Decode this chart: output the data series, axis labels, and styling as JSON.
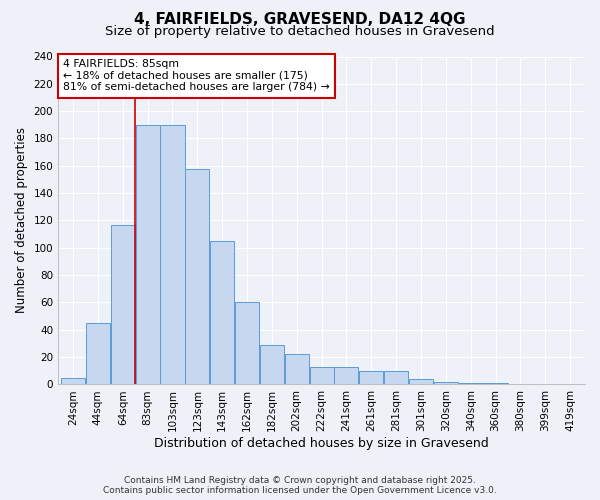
{
  "title": "4, FAIRFIELDS, GRAVESEND, DA12 4QG",
  "subtitle": "Size of property relative to detached houses in Gravesend",
  "xlabel": "Distribution of detached houses by size in Gravesend",
  "ylabel": "Number of detached properties",
  "bin_labels": [
    "24sqm",
    "44sqm",
    "64sqm",
    "83sqm",
    "103sqm",
    "123sqm",
    "143sqm",
    "162sqm",
    "182sqm",
    "202sqm",
    "222sqm",
    "241sqm",
    "261sqm",
    "281sqm",
    "301sqm",
    "320sqm",
    "340sqm",
    "360sqm",
    "380sqm",
    "399sqm",
    "419sqm"
  ],
  "bar_values": [
    5,
    45,
    117,
    190,
    190,
    158,
    105,
    60,
    29,
    22,
    13,
    13,
    10,
    10,
    4,
    2,
    1,
    1,
    0,
    0,
    0
  ],
  "bar_color": "#c5d8f0",
  "bar_edge_color": "#5b9bd5",
  "vline_x_index": 3,
  "vline_color": "#cc0000",
  "annotation_text": "4 FAIRFIELDS: 85sqm\n← 18% of detached houses are smaller (175)\n81% of semi-detached houses are larger (784) →",
  "annotation_box_color": "white",
  "annotation_box_edge": "#cc0000",
  "ylim": [
    0,
    240
  ],
  "yticks": [
    0,
    20,
    40,
    60,
    80,
    100,
    120,
    140,
    160,
    180,
    200,
    220,
    240
  ],
  "footer_line1": "Contains HM Land Registry data © Crown copyright and database right 2025.",
  "footer_line2": "Contains public sector information licensed under the Open Government Licence v3.0.",
  "bg_color": "#eef2f8",
  "grid_color": "#ffffff",
  "title_fontsize": 11,
  "subtitle_fontsize": 9.5,
  "xlabel_fontsize": 9,
  "ylabel_fontsize": 8.5,
  "tick_fontsize": 7.5,
  "footer_fontsize": 6.5
}
